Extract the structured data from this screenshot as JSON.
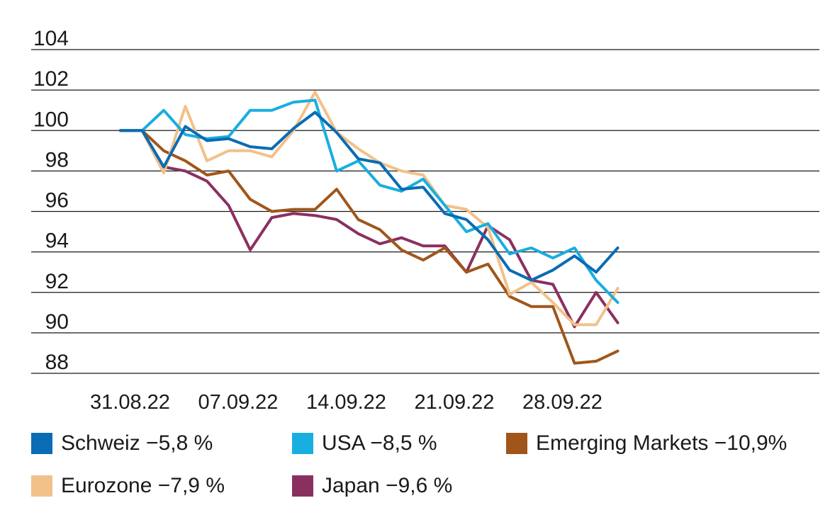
{
  "chart_data": {
    "type": "line",
    "title": "",
    "xlabel": "",
    "ylabel": "",
    "ylim": [
      88,
      104
    ],
    "yticks": [
      "104",
      "102",
      "100",
      "98",
      "96",
      "94",
      "92",
      "90",
      "88"
    ],
    "xticks": [
      "31.08.22",
      "07.09.22",
      "14.09.22",
      "21.09.22",
      "28.09.22"
    ],
    "x": [
      "30.08.22",
      "31.08.22",
      "01.09.22",
      "02.09.22",
      "05.09.22",
      "06.09.22",
      "07.09.22",
      "08.09.22",
      "09.09.22",
      "12.09.22",
      "13.09.22",
      "14.09.22",
      "15.09.22",
      "16.09.22",
      "19.09.22",
      "20.09.22",
      "21.09.22",
      "22.09.22",
      "23.09.22",
      "26.09.22",
      "27.09.22",
      "28.09.22",
      "29.09.22",
      "30.09.22"
    ],
    "grid": "horizontal",
    "legend_position": "bottom",
    "series": [
      {
        "name": "Schweiz −5,8 %",
        "color": "#0a6cb4",
        "values": [
          100.0,
          100.0,
          98.2,
          100.2,
          99.5,
          99.6,
          99.2,
          99.1,
          100.1,
          100.9,
          99.9,
          98.6,
          98.4,
          97.1,
          97.2,
          95.9,
          95.6,
          94.6,
          93.1,
          92.6,
          93.1,
          93.8,
          93.0,
          94.2
        ]
      },
      {
        "name": "USA −8,5 %",
        "color": "#19aee0",
        "values": [
          100.0,
          100.0,
          101.0,
          99.8,
          99.6,
          99.7,
          101.0,
          101.0,
          101.4,
          101.5,
          98.0,
          98.5,
          97.3,
          97.0,
          97.6,
          96.3,
          95.0,
          95.4,
          93.9,
          94.2,
          93.7,
          94.2,
          92.6,
          91.5
        ]
      },
      {
        "name": "Emerging Markets −10,9%",
        "color": "#a0561a",
        "values": [
          100.0,
          100.0,
          99.0,
          98.5,
          97.8,
          98.0,
          96.6,
          96.0,
          96.1,
          96.1,
          97.1,
          95.6,
          95.1,
          94.1,
          93.6,
          94.2,
          93.0,
          93.4,
          91.8,
          91.3,
          91.3,
          88.5,
          88.6,
          89.1
        ]
      },
      {
        "name": "Eurozone −7,9 %",
        "color": "#f2c18a",
        "values": [
          100.0,
          100.0,
          97.9,
          101.2,
          98.5,
          99.0,
          99.0,
          98.7,
          100.0,
          101.9,
          99.9,
          99.1,
          98.4,
          98.0,
          97.8,
          96.3,
          96.1,
          95.2,
          91.9,
          92.5,
          91.5,
          90.4,
          90.4,
          92.2
        ]
      },
      {
        "name": "Japan −9,6 %",
        "color": "#8a3060",
        "values": [
          100.0,
          100.0,
          98.2,
          98.0,
          97.5,
          96.3,
          94.1,
          95.7,
          95.9,
          95.8,
          95.6,
          94.9,
          94.4,
          94.7,
          94.3,
          94.3,
          93.0,
          95.3,
          94.6,
          92.6,
          92.4,
          90.3,
          92.0,
          90.5
        ]
      }
    ]
  }
}
